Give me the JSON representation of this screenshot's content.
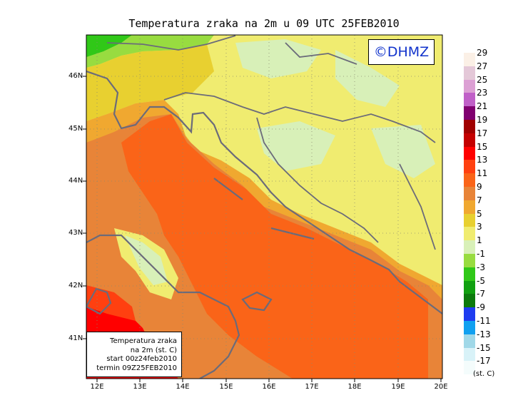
{
  "title": "Temperatura zraka na 2m u 09 UTC 25FEB2010",
  "logo": "©DHMZ",
  "info_box": {
    "line1": "Temperatura zraka",
    "line2": "na 2m (st. C)",
    "line3": "start 00z24feb2010",
    "line4": "termin 09Z25FEB2010"
  },
  "lat_labels": [
    "46N",
    "45N",
    "44N",
    "43N",
    "42N",
    "41N"
  ],
  "lon_labels": [
    "12E",
    "13E",
    "14E",
    "15E",
    "16E",
    "17E",
    "18E",
    "19E",
    "20E"
  ],
  "legend": {
    "units": "(st. C)",
    "entries": [
      {
        "label": "29",
        "color": "#fbf0e6"
      },
      {
        "label": "27",
        "color": "#e4c8d8"
      },
      {
        "label": "25",
        "color": "#dca0d4"
      },
      {
        "label": "23",
        "color": "#c060c8"
      },
      {
        "label": "21",
        "color": "#800070"
      },
      {
        "label": "19",
        "color": "#a00000"
      },
      {
        "label": "17",
        "color": "#c40000"
      },
      {
        "label": "15",
        "color": "#ff0000"
      },
      {
        "label": "13",
        "color": "#ff4010"
      },
      {
        "label": "11",
        "color": "#fa6418"
      },
      {
        "label": "9",
        "color": "#e88438"
      },
      {
        "label": "7",
        "color": "#f0a830"
      },
      {
        "label": "5",
        "color": "#e8d030"
      },
      {
        "label": "3",
        "color": "#f0ec70"
      },
      {
        "label": "1",
        "color": "#d8f0b8"
      },
      {
        "label": "-1",
        "color": "#98dc40"
      },
      {
        "label": "-3",
        "color": "#30c818"
      },
      {
        "label": "-5",
        "color": "#10a010"
      },
      {
        "label": "-7",
        "color": "#0c7a0c"
      },
      {
        "label": "-9",
        "color": "#1e3cf0"
      },
      {
        "label": "-11",
        "color": "#10a0f0"
      },
      {
        "label": "-13",
        "color": "#a0d8e8"
      },
      {
        "label": "-15",
        "color": "#d8f2f8"
      },
      {
        "label": "-17",
        "color": "#f4fcfc"
      }
    ]
  }
}
